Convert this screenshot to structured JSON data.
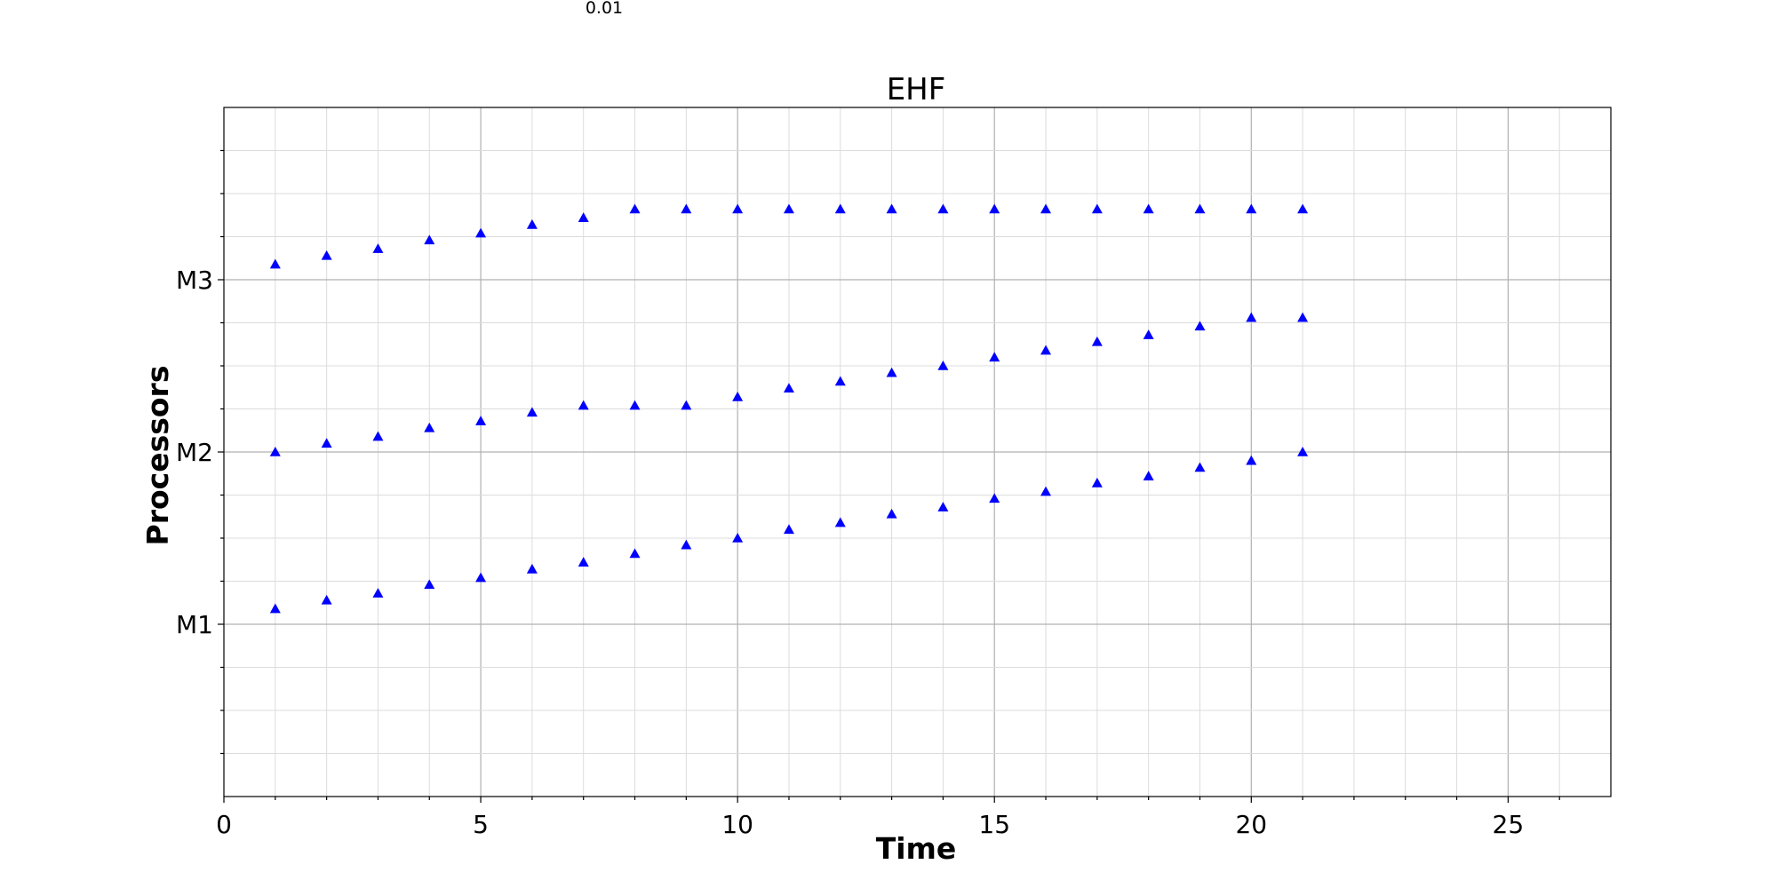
{
  "top_note": "0.01",
  "chart_data": {
    "type": "scatter",
    "title": "EHF",
    "xlabel": "Time",
    "ylabel": "Processors",
    "xlim": [
      0,
      27
    ],
    "ylim": [
      0,
      4
    ],
    "x_ticks": [
      0,
      5,
      10,
      15,
      20,
      25
    ],
    "x_tick_labels": [
      "0",
      "5",
      "10",
      "15",
      "20",
      "25"
    ],
    "x_minor_step": 1,
    "y_ticks": [
      1,
      2,
      3
    ],
    "y_tick_labels": [
      "M1",
      "M2",
      "M3"
    ],
    "y_minor_step": 0.25,
    "grid": true,
    "marker": "triangle-up",
    "marker_color": "#0000ff",
    "series": [
      {
        "x": [
          1,
          2,
          3,
          4,
          5,
          6,
          7,
          8,
          9,
          10,
          11,
          12,
          13,
          14,
          15,
          16,
          17,
          18,
          19,
          20,
          21
        ],
        "y": [
          1.09,
          1.14,
          1.18,
          1.23,
          1.27,
          1.32,
          1.36,
          1.41,
          1.46,
          1.5,
          1.55,
          1.59,
          1.64,
          1.68,
          1.73,
          1.77,
          1.82,
          1.86,
          1.91,
          1.95,
          2.0
        ]
      },
      {
        "x": [
          1,
          2,
          3,
          4,
          5,
          6,
          7,
          8,
          9,
          10,
          11,
          12,
          13,
          14,
          15,
          16,
          17,
          18,
          19,
          20,
          21
        ],
        "y": [
          2.0,
          2.05,
          2.09,
          2.14,
          2.18,
          2.23,
          2.27,
          2.27,
          2.27,
          2.32,
          2.37,
          2.41,
          2.46,
          2.5,
          2.55,
          2.59,
          2.64,
          2.68,
          2.73,
          2.78,
          2.78
        ]
      },
      {
        "x": [
          1,
          2,
          3,
          4,
          5,
          6,
          7,
          8,
          9,
          10,
          11,
          12,
          13,
          14,
          15,
          16,
          17,
          18,
          19,
          20,
          21
        ],
        "y": [
          3.09,
          3.14,
          3.18,
          3.23,
          3.27,
          3.32,
          3.36,
          3.41,
          3.41,
          3.41,
          3.41,
          3.41,
          3.41,
          3.41,
          3.41,
          3.41,
          3.41,
          3.41,
          3.41,
          3.41,
          3.41
        ]
      }
    ]
  }
}
